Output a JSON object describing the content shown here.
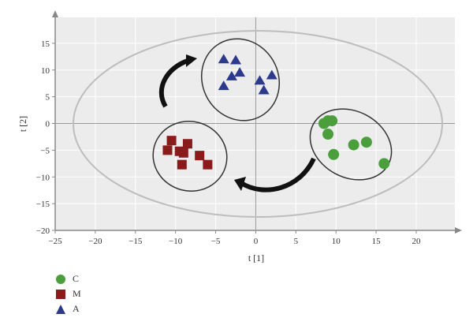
{
  "chart_data": {
    "type": "scatter",
    "title": "",
    "xlabel": "t [1]",
    "ylabel": "t [2]",
    "xlim": [
      -25,
      25
    ],
    "ylim": [
      -20,
      20
    ],
    "xticks": [
      -25,
      -20,
      -15,
      -10,
      -5,
      0,
      5,
      10,
      15,
      20
    ],
    "yticks": [
      15,
      10,
      5,
      0,
      -5,
      -10,
      -15,
      -20
    ],
    "grid": true,
    "legend_position": "bottom-left",
    "colors": {
      "C": "#4a9e3b",
      "M": "#8b1a1a",
      "A": "#2d3a8c"
    },
    "series": [
      {
        "name": "C",
        "marker": "circle",
        "x": [
          8.5,
          9.0,
          9.5,
          9.0,
          9.7,
          12.2,
          13.8,
          16.0
        ],
        "y": [
          0.0,
          0.5,
          0.5,
          -2.0,
          -5.8,
          -4.0,
          -3.5,
          -7.5
        ]
      },
      {
        "name": "M",
        "marker": "square",
        "x": [
          -11.0,
          -10.5,
          -9.5,
          -9.0,
          -8.5,
          -9.2,
          -7.0,
          -6.0
        ],
        "y": [
          -5.0,
          -3.2,
          -5.2,
          -5.5,
          -3.8,
          -7.7,
          -6.0,
          -7.7
        ]
      },
      {
        "name": "A",
        "marker": "triangle",
        "x": [
          -4.0,
          -2.5,
          -2.0,
          -3.0,
          -4.0,
          0.5,
          1.0,
          2.0
        ],
        "y": [
          12.0,
          11.8,
          9.5,
          8.8,
          7.0,
          8.0,
          6.2,
          9.0
        ]
      }
    ]
  },
  "legend": {
    "items": [
      {
        "label": "C",
        "marker": "circle",
        "color": "#4a9e3b"
      },
      {
        "label": "M",
        "marker": "square",
        "color": "#8b1a1a"
      },
      {
        "label": "A",
        "marker": "triangle",
        "color": "#2d3a8c"
      }
    ]
  }
}
